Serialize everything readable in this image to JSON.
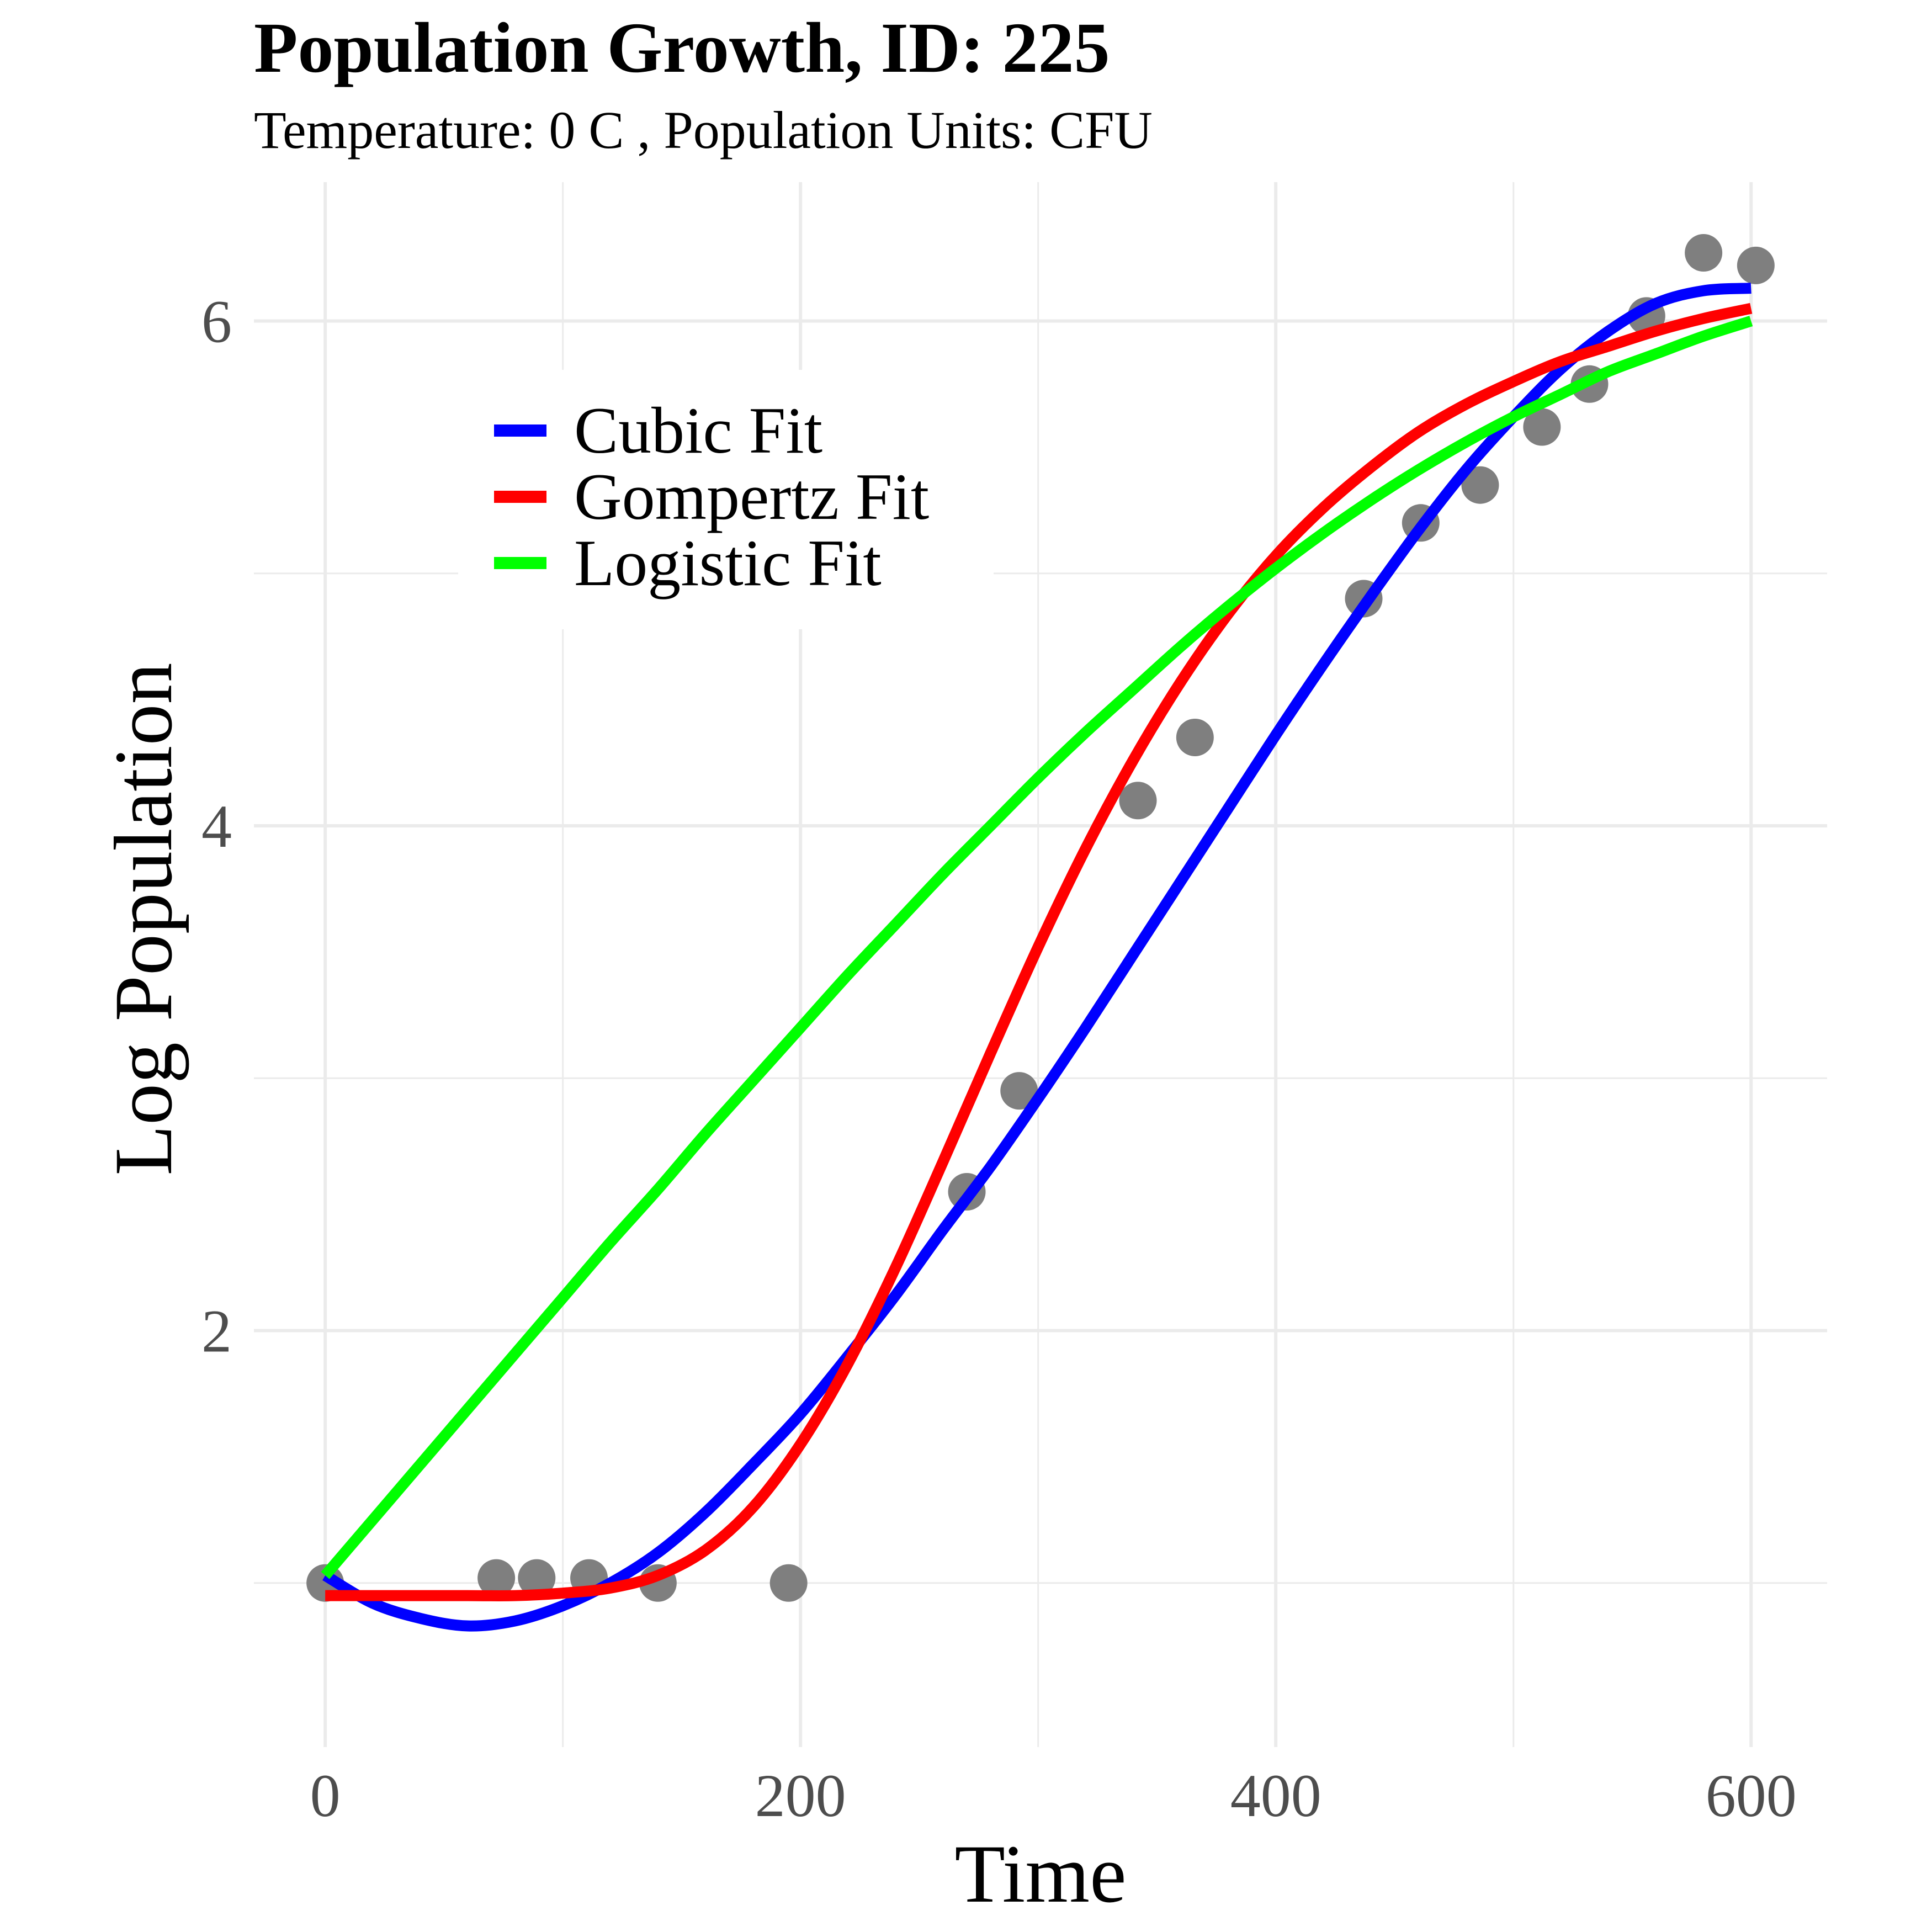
{
  "chart_data": {
    "type": "line",
    "title": "Population Growth, ID:  225",
    "subtitle": "Temperature:  0 C , Population Units:  CFU",
    "xlabel": "Time",
    "ylabel": "Log Population",
    "xlim": [
      -30,
      632
    ],
    "ylim": [
      0.35,
      6.55
    ],
    "x_ticks": [
      0,
      200,
      400,
      600
    ],
    "y_ticks": [
      2,
      4,
      6
    ],
    "grid": true,
    "legend_position": "top-left",
    "points": {
      "name": "",
      "color": "#7f7f7f",
      "x": [
        0,
        72,
        89,
        111,
        140,
        195,
        270,
        292,
        342,
        366,
        437,
        461,
        486,
        512,
        532,
        556,
        580,
        602
      ],
      "y": [
        1.0,
        1.02,
        1.02,
        1.02,
        1.0,
        1.0,
        2.55,
        2.95,
        4.1,
        4.35,
        4.9,
        5.2,
        5.35,
        5.58,
        5.75,
        6.02,
        6.27,
        6.22
      ]
    },
    "series": [
      {
        "name": "Cubic Fit",
        "color": "#0000ff",
        "x": [
          0,
          20,
          40,
          60,
          80,
          100,
          120,
          140,
          160,
          180,
          200,
          220,
          240,
          260,
          280,
          300,
          320,
          340,
          360,
          380,
          400,
          420,
          440,
          460,
          480,
          500,
          520,
          540,
          560,
          580,
          600
        ],
        "y": [
          1.03,
          0.92,
          0.86,
          0.83,
          0.85,
          0.91,
          1.0,
          1.12,
          1.28,
          1.47,
          1.67,
          1.9,
          2.14,
          2.4,
          2.65,
          2.92,
          3.2,
          3.49,
          3.78,
          4.07,
          4.36,
          4.64,
          4.91,
          5.17,
          5.41,
          5.62,
          5.81,
          5.96,
          6.07,
          6.12,
          6.13
        ]
      },
      {
        "name": "Gompertz Fit",
        "color": "#ff0000",
        "x": [
          0,
          20,
          40,
          60,
          80,
          100,
          120,
          140,
          160,
          180,
          200,
          220,
          240,
          260,
          280,
          300,
          320,
          340,
          360,
          380,
          400,
          420,
          440,
          460,
          480,
          500,
          520,
          540,
          560,
          580,
          600
        ],
        "y": [
          0.95,
          0.95,
          0.95,
          0.95,
          0.95,
          0.96,
          0.98,
          1.03,
          1.13,
          1.3,
          1.55,
          1.87,
          2.25,
          2.67,
          3.1,
          3.52,
          3.91,
          4.26,
          4.57,
          4.84,
          5.07,
          5.26,
          5.42,
          5.56,
          5.67,
          5.76,
          5.84,
          5.9,
          5.96,
          6.01,
          6.05
        ]
      },
      {
        "name": "Logistic Fit",
        "color": "#00ff00",
        "x": [
          0,
          20,
          40,
          60,
          80,
          100,
          120,
          140,
          160,
          180,
          200,
          220,
          240,
          260,
          280,
          300,
          320,
          340,
          360,
          380,
          400,
          420,
          440,
          460,
          480,
          500,
          520,
          540,
          560,
          580,
          600
        ],
        "y": [
          1.03,
          1.25,
          1.47,
          1.69,
          1.91,
          2.13,
          2.35,
          2.56,
          2.78,
          2.99,
          3.2,
          3.41,
          3.61,
          3.81,
          4.0,
          4.19,
          4.37,
          4.54,
          4.71,
          4.87,
          5.02,
          5.16,
          5.29,
          5.41,
          5.52,
          5.62,
          5.71,
          5.8,
          5.87,
          5.94,
          6.0
        ]
      }
    ]
  }
}
